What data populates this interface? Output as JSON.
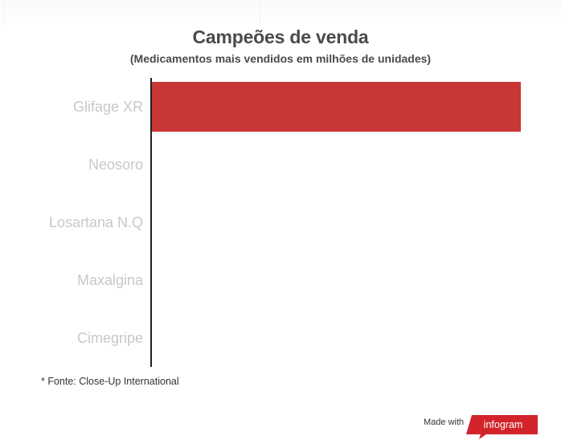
{
  "chart_data": {
    "type": "bar",
    "orientation": "horizontal",
    "title": "Campeões de venda",
    "subtitle": "(Medicamentos mais vendidos em milhões de unidades)",
    "categories": [
      "Glifage XR",
      "Neosoro",
      "Losartana N.Q",
      "Maxalgina",
      "Cimegripe"
    ],
    "values": [
      1,
      null,
      null,
      null,
      null
    ],
    "bar_color": "#c93636",
    "label_color": "#c8c8c8",
    "axis_color": "#222222"
  },
  "footnote": "* Fonte: Close-Up International",
  "branding": {
    "made_with": "Made with",
    "logo_text": "infogram",
    "logo_color": "#d3232a"
  }
}
